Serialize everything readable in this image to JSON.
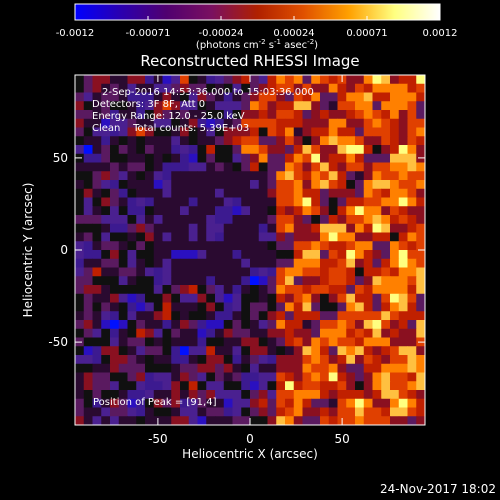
{
  "colorbar": {
    "tick_labels": [
      "-0.0012",
      "-0.00071",
      "-0.00024",
      "0.00024",
      "0.00071",
      "0.0012"
    ],
    "unit_prefix": "(photons cm",
    "unit_exp1": "-2",
    "unit_mid": " s",
    "unit_exp2": "-1",
    "unit_mid2": " asec",
    "unit_exp3": "-2",
    "unit_suffix": ")",
    "stops": [
      "#0000ff",
      "#2a00b0",
      "#500070",
      "#7a1060",
      "#b02000",
      "#e05000",
      "#ffa000",
      "#ffff80",
      "#ffffff"
    ]
  },
  "plot": {
    "title": "Reconstructed RHESSI Image",
    "info_lines": [
      "2-Sep-2016 14:53:36.000 to 15:03:36.000",
      "Detectors: 3F 8F, Att 0",
      "Energy Range: 12.0 - 25.0 keV",
      "Clean    Total counts: 5.39E+03"
    ],
    "peak_label": "Position of Peak = [91,4]",
    "xlabel": "Heliocentric X (arcsec)",
    "ylabel": "Heliocentric Y (arcsec)",
    "x_ticks": [
      "-50",
      "0",
      "50"
    ],
    "y_ticks": [
      "50",
      "0",
      "-50"
    ],
    "x_tick_values": [
      -50,
      0,
      50
    ],
    "y_tick_values": [
      50,
      0,
      -50
    ],
    "xlim": [
      -95,
      95
    ],
    "ylim": [
      -95,
      95
    ]
  },
  "footer": {
    "timestamp": "24-Nov-2017 18:02"
  }
}
